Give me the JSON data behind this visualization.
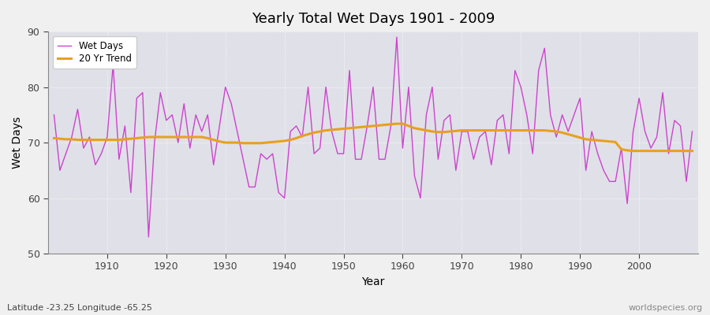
{
  "title": "Yearly Total Wet Days 1901 - 2009",
  "xlabel": "Year",
  "ylabel": "Wet Days",
  "footnote_left": "Latitude -23.25 Longitude -65.25",
  "footnote_right": "worldspecies.org",
  "line_color": "#CC44CC",
  "trend_color": "#E8A020",
  "fig_bg_color": "#F0F0F0",
  "plot_bg_color": "#E0E0E8",
  "ylim": [
    50,
    90
  ],
  "yticks": [
    50,
    60,
    70,
    80,
    90
  ],
  "xlim": [
    1900,
    2010
  ],
  "xticks": [
    1910,
    1920,
    1930,
    1940,
    1950,
    1960,
    1970,
    1980,
    1990,
    2000
  ],
  "years": [
    1901,
    1902,
    1903,
    1904,
    1905,
    1906,
    1907,
    1908,
    1909,
    1910,
    1911,
    1912,
    1913,
    1914,
    1915,
    1916,
    1917,
    1918,
    1919,
    1920,
    1921,
    1922,
    1923,
    1924,
    1925,
    1926,
    1927,
    1928,
    1929,
    1930,
    1931,
    1932,
    1933,
    1934,
    1935,
    1936,
    1937,
    1938,
    1939,
    1940,
    1941,
    1942,
    1943,
    1944,
    1945,
    1946,
    1947,
    1948,
    1949,
    1950,
    1951,
    1952,
    1953,
    1954,
    1955,
    1956,
    1957,
    1958,
    1959,
    1960,
    1961,
    1962,
    1963,
    1964,
    1965,
    1966,
    1967,
    1968,
    1969,
    1970,
    1971,
    1972,
    1973,
    1974,
    1975,
    1976,
    1977,
    1978,
    1979,
    1980,
    1981,
    1982,
    1983,
    1984,
    1985,
    1986,
    1987,
    1988,
    1989,
    1990,
    1991,
    1992,
    1993,
    1994,
    1995,
    1996,
    1997,
    1998,
    1999,
    2000,
    2001,
    2002,
    2003,
    2004,
    2005,
    2006,
    2007,
    2008,
    2009
  ],
  "wet_days": [
    75,
    65,
    68,
    71,
    76,
    69,
    71,
    66,
    68,
    71,
    84,
    67,
    73,
    61,
    78,
    79,
    53,
    70,
    79,
    74,
    75,
    70,
    77,
    69,
    75,
    72,
    75,
    66,
    73,
    80,
    77,
    72,
    67,
    62,
    62,
    68,
    67,
    68,
    61,
    60,
    72,
    73,
    71,
    80,
    68,
    69,
    80,
    72,
    68,
    68,
    83,
    67,
    67,
    73,
    80,
    67,
    67,
    73,
    89,
    69,
    80,
    64,
    60,
    75,
    80,
    67,
    74,
    75,
    65,
    72,
    72,
    67,
    71,
    72,
    66,
    74,
    75,
    68,
    83,
    80,
    75,
    68,
    83,
    87,
    75,
    71,
    75,
    72,
    75,
    78,
    65,
    72,
    68,
    65,
    63,
    63,
    69,
    59,
    72,
    78,
    72,
    69,
    71,
    79,
    68,
    74,
    73,
    63,
    72
  ],
  "trend": [
    70.8,
    70.7,
    70.6,
    70.6,
    70.5,
    70.5,
    70.5,
    70.5,
    70.5,
    70.5,
    70.5,
    70.5,
    70.6,
    70.7,
    70.8,
    70.9,
    71.0,
    71.0,
    71.0,
    71.0,
    71.0,
    71.0,
    71.0,
    71.0,
    71.0,
    71.0,
    70.8,
    70.5,
    70.2,
    70.0,
    70.0,
    70.0,
    69.9,
    69.9,
    69.9,
    69.9,
    70.0,
    70.1,
    70.2,
    70.3,
    70.5,
    70.8,
    71.2,
    71.5,
    71.8,
    72.0,
    72.2,
    72.3,
    72.4,
    72.5,
    72.6,
    72.7,
    72.8,
    72.9,
    73.0,
    73.1,
    73.2,
    73.3,
    73.4,
    73.4,
    73.0,
    72.6,
    72.4,
    72.2,
    72.0,
    71.9,
    71.9,
    72.0,
    72.1,
    72.2,
    72.2,
    72.2,
    72.2,
    72.2,
    72.2,
    72.2,
    72.2,
    72.2,
    72.2,
    72.2,
    72.2,
    72.2,
    72.2,
    72.2,
    72.1,
    72.0,
    71.8,
    71.5,
    71.2,
    70.9,
    70.6,
    70.5,
    70.4,
    70.3,
    70.2,
    70.1,
    68.8,
    68.6,
    68.5,
    68.5,
    68.5,
    68.5,
    68.5,
    68.5,
    68.5,
    68.5,
    68.5,
    68.5,
    68.5
  ]
}
